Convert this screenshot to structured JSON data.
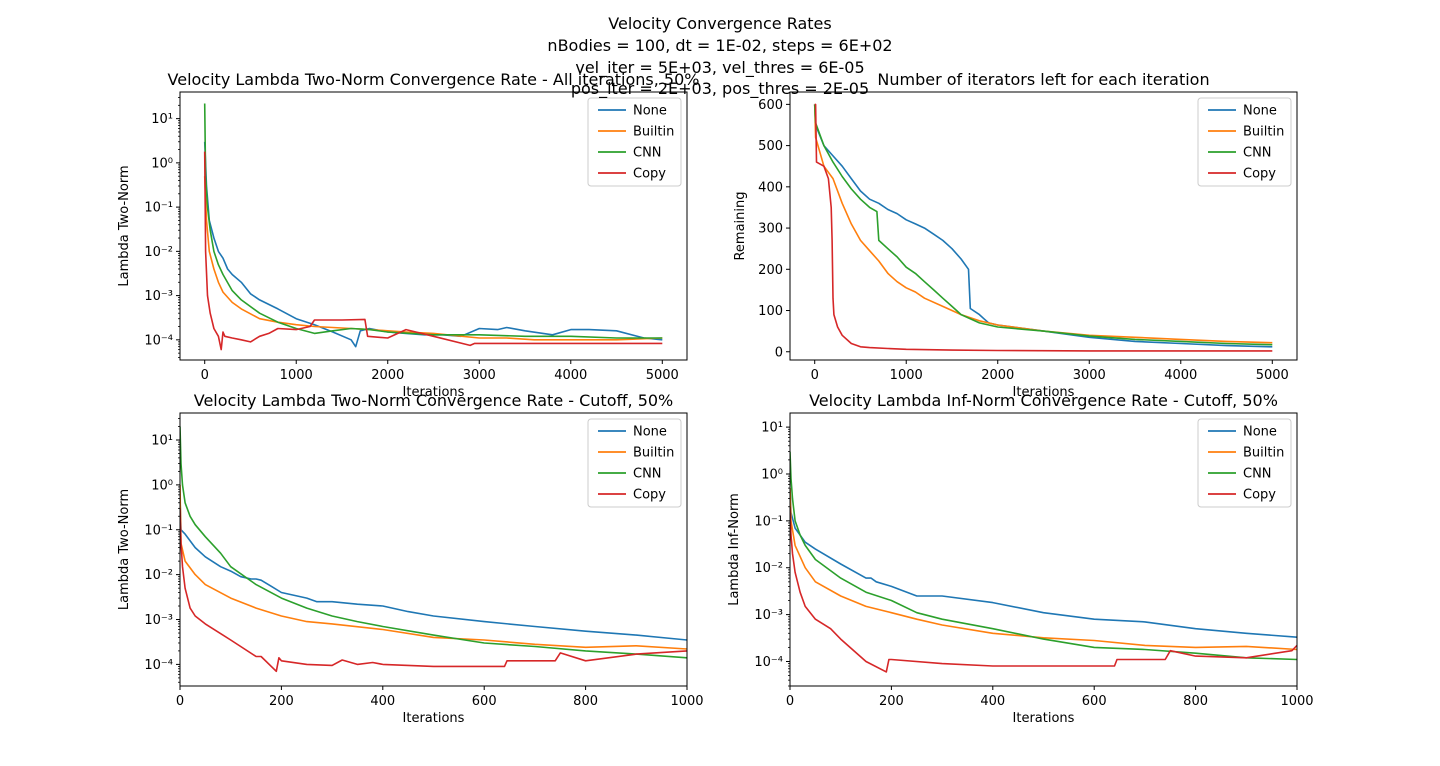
{
  "figure": {
    "suptitle": [
      "Velocity Convergence Rates",
      "nBodies = 100, dt = 1E-02, steps = 6E+02",
      "vel_iter = 5E+03, vel_thres = 6E-05",
      "pos_iter = 2E+03, pos_thres = 2E-05"
    ]
  },
  "colors": {
    "None": "#1f77b4",
    "Builtin": "#ff7f0e",
    "CNN": "#2ca02c",
    "Copy": "#d62728"
  },
  "chart_data": [
    {
      "type": "line",
      "title": "Velocity Lambda Two-Norm Convergence Rate - All iterations, 50%",
      "xlabel": "Iterations",
      "ylabel": "Lambda Two-Norm",
      "yscale": "log",
      "xlim": [
        -270,
        5270
      ],
      "ylim": [
        3.5e-05,
        40
      ],
      "xticks": [
        0,
        1000,
        2000,
        3000,
        4000,
        5000
      ],
      "yticks": [
        0.0001,
        0.001,
        0.01,
        0.1,
        1,
        10
      ],
      "yticklabels": [
        "10⁻⁴",
        "10⁻³",
        "10⁻²",
        "10⁻¹",
        "10⁰",
        "10¹"
      ],
      "legend": "top-right",
      "series": [
        {
          "name": "None",
          "x": [
            0,
            20,
            50,
            100,
            150,
            200,
            250,
            300,
            400,
            500,
            600,
            800,
            1000,
            1200,
            1400,
            1600,
            1650,
            1700,
            1800,
            2000,
            2200,
            2400,
            2600,
            2800,
            3000,
            3200,
            3300,
            3500,
            3800,
            4000,
            4200,
            4500,
            4800,
            5000
          ],
          "y": [
            3,
            0.3,
            0.05,
            0.02,
            0.01,
            0.007,
            0.004,
            0.003,
            0.002,
            0.0011,
            0.0008,
            0.0005,
            0.0003,
            0.00022,
            0.00015,
            0.0001,
            7e-05,
            0.00016,
            0.00018,
            0.00015,
            0.00014,
            0.00013,
            0.00013,
            0.00012,
            0.00018,
            0.00017,
            0.00019,
            0.00016,
            0.00013,
            0.00017,
            0.00017,
            0.00016,
            0.00011,
            0.0001
          ]
        },
        {
          "name": "Builtin",
          "x": [
            0,
            20,
            50,
            100,
            150,
            200,
            300,
            400,
            600,
            800,
            1000,
            1200,
            1400,
            1600,
            1800,
            2000,
            2200,
            2500,
            3000,
            3300,
            3600,
            4000,
            4500,
            5000
          ],
          "y": [
            0.5,
            0.05,
            0.01,
            0.004,
            0.002,
            0.0012,
            0.0007,
            0.0005,
            0.0003,
            0.00025,
            0.00022,
            0.0002,
            0.00019,
            0.00018,
            0.00017,
            0.00016,
            0.00015,
            0.00014,
            0.00011,
            0.00011,
            0.0001,
            0.0001,
            0.0001,
            0.00011
          ]
        },
        {
          "name": "CNN",
          "x": [
            0,
            10,
            30,
            60,
            100,
            150,
            200,
            300,
            400,
            600,
            800,
            1000,
            1200,
            1400,
            1600,
            1800,
            2000,
            2500,
            3000,
            3500,
            4000,
            4500,
            5000
          ],
          "y": [
            22,
            0.5,
            0.1,
            0.03,
            0.01,
            0.005,
            0.003,
            0.0013,
            0.0008,
            0.0004,
            0.00025,
            0.00018,
            0.00014,
            0.00016,
            0.00018,
            0.00017,
            0.00015,
            0.00013,
            0.00013,
            0.00012,
            0.00012,
            0.00011,
            0.00011
          ]
        },
        {
          "name": "Copy",
          "x": [
            0,
            10,
            30,
            60,
            100,
            150,
            180,
            200,
            220,
            300,
            400,
            500,
            600,
            700,
            800,
            1000,
            1150,
            1200,
            1500,
            1750,
            1780,
            2000,
            2200,
            2500,
            2900,
            2950,
            3500,
            4000,
            4500,
            5000
          ],
          "y": [
            1.8,
            0.01,
            0.001,
            0.0004,
            0.00018,
            0.00012,
            6e-05,
            0.00015,
            0.00012,
            0.00011,
            0.0001,
            9e-05,
            0.00012,
            0.00014,
            0.00018,
            0.00017,
            0.0002,
            0.00028,
            0.00028,
            0.00029,
            0.00012,
            0.00011,
            0.00017,
            0.00012,
            7.5e-05,
            8.3e-05,
            8.3e-05,
            8.3e-05,
            8.3e-05,
            8.3e-05
          ]
        }
      ]
    },
    {
      "type": "line",
      "title": "Number of iterators left for each iteration",
      "xlabel": "Iterations",
      "ylabel": "Remaining",
      "yscale": "linear",
      "xlim": [
        -270,
        5270
      ],
      "ylim": [
        -20,
        630
      ],
      "xticks": [
        0,
        1000,
        2000,
        3000,
        4000,
        5000
      ],
      "yticks": [
        0,
        100,
        200,
        300,
        400,
        500,
        600
      ],
      "legend": "top-right",
      "series": [
        {
          "name": "None",
          "x": [
            0,
            10,
            100,
            200,
            300,
            400,
            500,
            600,
            700,
            800,
            900,
            1000,
            1100,
            1200,
            1300,
            1400,
            1500,
            1600,
            1680,
            1700,
            1800,
            1850,
            1900,
            2000,
            2500,
            3000,
            3500,
            4000,
            4500,
            5000
          ],
          "y": [
            600,
            550,
            500,
            475,
            450,
            420,
            390,
            370,
            360,
            345,
            335,
            320,
            310,
            300,
            285,
            270,
            250,
            225,
            200,
            105,
            90,
            80,
            70,
            65,
            50,
            35,
            25,
            20,
            15,
            12
          ]
        },
        {
          "name": "Builtin",
          "x": [
            0,
            10,
            100,
            200,
            300,
            400,
            500,
            600,
            700,
            800,
            900,
            1000,
            1100,
            1200,
            1400,
            1600,
            1800,
            2000,
            2500,
            3000,
            3500,
            4000,
            4500,
            5000
          ],
          "y": [
            600,
            520,
            450,
            420,
            360,
            310,
            270,
            245,
            220,
            190,
            170,
            155,
            145,
            130,
            110,
            90,
            75,
            65,
            50,
            40,
            35,
            30,
            25,
            22
          ]
        },
        {
          "name": "CNN",
          "x": [
            0,
            10,
            100,
            200,
            300,
            400,
            500,
            600,
            680,
            700,
            800,
            900,
            1000,
            1100,
            1200,
            1300,
            1400,
            1500,
            1600,
            1800,
            2000,
            2500,
            3000,
            3500,
            4000,
            4500,
            5000
          ],
          "y": [
            600,
            555,
            500,
            460,
            425,
            395,
            370,
            350,
            340,
            270,
            250,
            230,
            205,
            190,
            170,
            150,
            130,
            110,
            90,
            70,
            60,
            50,
            38,
            30,
            25,
            20,
            17
          ]
        },
        {
          "name": "Copy",
          "x": [
            0,
            10,
            20,
            100,
            150,
            180,
            190,
            200,
            210,
            250,
            300,
            400,
            500,
            600,
            800,
            1000,
            1500,
            2000,
            3000,
            4000,
            5000
          ],
          "y": [
            600,
            600,
            460,
            450,
            420,
            350,
            270,
            130,
            90,
            60,
            40,
            20,
            12,
            10,
            8,
            6,
            4,
            3,
            2,
            2,
            2
          ]
        }
      ]
    },
    {
      "type": "line",
      "title": "Velocity Lambda Two-Norm Convergence Rate - Cutoff, 50%",
      "xlabel": "Iterations",
      "ylabel": "Lambda Two-Norm",
      "yscale": "log",
      "xlim": [
        0,
        1000
      ],
      "ylim": [
        3.3e-05,
        40
      ],
      "xticks": [
        0,
        200,
        400,
        600,
        800,
        1000
      ],
      "yticks": [
        0.0001,
        0.001,
        0.01,
        0.1,
        1,
        10
      ],
      "yticklabels": [
        "10⁻⁴",
        "10⁻³",
        "10⁻²",
        "10⁻¹",
        "10⁰",
        "10¹"
      ],
      "legend": "top-right",
      "series": [
        {
          "name": "None",
          "x": [
            0,
            2,
            10,
            30,
            50,
            80,
            100,
            120,
            130,
            140,
            150,
            160,
            180,
            200,
            250,
            270,
            300,
            350,
            400,
            450,
            500,
            600,
            700,
            800,
            900,
            1000
          ],
          "y": [
            0.5,
            0.1,
            0.08,
            0.04,
            0.025,
            0.015,
            0.012,
            0.009,
            0.0085,
            0.008,
            0.008,
            0.0075,
            0.0055,
            0.004,
            0.003,
            0.0025,
            0.0025,
            0.0022,
            0.002,
            0.0015,
            0.0012,
            0.0009,
            0.0007,
            0.00055,
            0.00045,
            0.00035
          ]
        },
        {
          "name": "Builtin",
          "x": [
            0,
            2,
            10,
            30,
            50,
            100,
            150,
            200,
            250,
            300,
            400,
            500,
            600,
            700,
            800,
            900,
            1000
          ],
          "y": [
            1,
            0.05,
            0.02,
            0.01,
            0.006,
            0.003,
            0.0018,
            0.0012,
            0.0009,
            0.0008,
            0.0006,
            0.0004,
            0.00035,
            0.00028,
            0.00024,
            0.00026,
            0.00022
          ]
        },
        {
          "name": "CNN",
          "x": [
            0,
            2,
            5,
            10,
            20,
            30,
            50,
            80,
            100,
            150,
            200,
            250,
            300,
            350,
            400,
            500,
            600,
            700,
            800,
            900,
            1000
          ],
          "y": [
            20,
            3,
            1,
            0.4,
            0.2,
            0.13,
            0.07,
            0.03,
            0.015,
            0.006,
            0.003,
            0.0018,
            0.0012,
            0.0009,
            0.0007,
            0.00045,
            0.0003,
            0.00025,
            0.0002,
            0.00017,
            0.00014
          ]
        },
        {
          "name": "Copy",
          "x": [
            0,
            2,
            5,
            10,
            20,
            30,
            50,
            100,
            150,
            160,
            190,
            195,
            200,
            250,
            300,
            320,
            350,
            380,
            400,
            500,
            550,
            600,
            640,
            645,
            700,
            740,
            750,
            800,
            900,
            1000
          ],
          "y": [
            0.3,
            0.05,
            0.015,
            0.005,
            0.0018,
            0.0012,
            0.0008,
            0.00035,
            0.00015,
            0.00015,
            7e-05,
            0.00014,
            0.00012,
            0.0001,
            9.5e-05,
            0.000125,
            0.0001,
            0.00011,
            0.0001,
            9e-05,
            9e-05,
            9e-05,
            9e-05,
            0.00012,
            0.00012,
            0.00012,
            0.00018,
            0.00012,
            0.00017,
            0.0002
          ]
        }
      ]
    },
    {
      "type": "line",
      "title": "Velocity Lambda Inf-Norm Convergence Rate - Cutoff, 50%",
      "xlabel": "Iterations",
      "ylabel": "Lambda Inf-Norm",
      "yscale": "log",
      "xlim": [
        0,
        1000
      ],
      "ylim": [
        3e-05,
        20
      ],
      "xticks": [
        0,
        200,
        400,
        600,
        800,
        1000
      ],
      "yticks": [
        0.0001,
        0.001,
        0.01,
        0.1,
        1,
        10
      ],
      "yticklabels": [
        "10⁻⁴",
        "10⁻³",
        "10⁻²",
        "10⁻¹",
        "10⁰",
        "10¹"
      ],
      "legend": "top-right",
      "series": [
        {
          "name": "None",
          "x": [
            0,
            2,
            10,
            30,
            50,
            100,
            150,
            160,
            170,
            200,
            250,
            300,
            400,
            500,
            600,
            700,
            800,
            900,
            1000
          ],
          "y": [
            0.5,
            0.15,
            0.07,
            0.035,
            0.025,
            0.012,
            0.006,
            0.006,
            0.005,
            0.004,
            0.0025,
            0.0025,
            0.0018,
            0.0011,
            0.0008,
            0.0007,
            0.0005,
            0.0004,
            0.00033
          ]
        },
        {
          "name": "Builtin",
          "x": [
            0,
            2,
            10,
            30,
            50,
            100,
            150,
            200,
            250,
            300,
            400,
            500,
            600,
            700,
            800,
            900,
            1000
          ],
          "y": [
            0.5,
            0.1,
            0.03,
            0.01,
            0.005,
            0.0025,
            0.0015,
            0.0011,
            0.0008,
            0.0006,
            0.0004,
            0.00032,
            0.00028,
            0.00022,
            0.0002,
            0.00021,
            0.00018
          ]
        },
        {
          "name": "CNN",
          "x": [
            0,
            2,
            5,
            10,
            20,
            30,
            50,
            100,
            150,
            200,
            250,
            300,
            400,
            500,
            600,
            700,
            800,
            900,
            1000
          ],
          "y": [
            3,
            0.8,
            0.3,
            0.1,
            0.05,
            0.03,
            0.015,
            0.006,
            0.003,
            0.002,
            0.0011,
            0.0008,
            0.0005,
            0.0003,
            0.0002,
            0.00018,
            0.00015,
            0.00012,
            0.00011
          ]
        },
        {
          "name": "Copy",
          "x": [
            0,
            2,
            5,
            10,
            20,
            30,
            50,
            80,
            100,
            150,
            190,
            195,
            200,
            300,
            400,
            500,
            600,
            640,
            645,
            700,
            740,
            750,
            800,
            900,
            990,
            1000
          ],
          "y": [
            0.2,
            0.05,
            0.02,
            0.008,
            0.003,
            0.0015,
            0.0008,
            0.0005,
            0.0003,
            0.0001,
            6e-05,
            0.00011,
            0.00011,
            9e-05,
            8e-05,
            8e-05,
            8e-05,
            8e-05,
            0.00011,
            0.00011,
            0.00011,
            0.00017,
            0.00013,
            0.00012,
            0.00017,
            0.00022
          ]
        }
      ]
    }
  ]
}
